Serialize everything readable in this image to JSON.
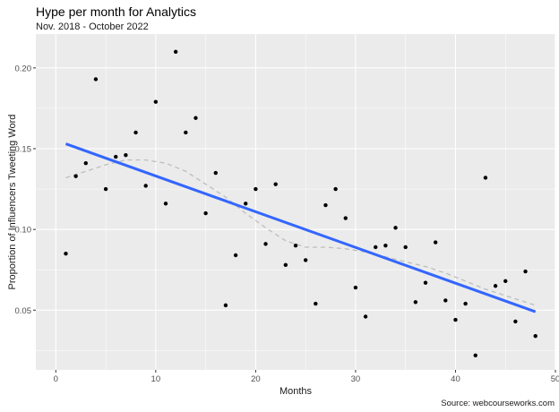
{
  "chart_data": {
    "type": "scatter",
    "title": "Hype per month for Analytics",
    "subtitle": "Nov. 2018 - October 2022",
    "xlabel": "Months",
    "ylabel": "Proportion of Influencers Tweeting Word",
    "caption": "Source: webcourseworks.com",
    "xlim": [
      -2,
      50
    ],
    "ylim": [
      0.013,
      0.221
    ],
    "x_ticks": [
      0,
      10,
      20,
      30,
      40,
      50
    ],
    "x_tick_labels": [
      "0",
      "10",
      "20",
      "30",
      "40",
      "50"
    ],
    "y_ticks": [
      0.05,
      0.1,
      0.15,
      0.2
    ],
    "y_tick_labels": [
      "0.05",
      "0.10",
      "0.15",
      "0.20"
    ],
    "grid": true,
    "points": {
      "x": [
        1,
        2,
        3,
        4,
        5,
        6,
        7,
        8,
        9,
        10,
        11,
        12,
        13,
        14,
        15,
        16,
        17,
        18,
        19,
        20,
        21,
        22,
        23,
        24,
        25,
        26,
        27,
        28,
        29,
        30,
        31,
        32,
        33,
        34,
        35,
        36,
        37,
        38,
        39,
        40,
        41,
        42,
        43,
        44,
        45,
        46,
        47,
        48
      ],
      "y": [
        0.085,
        0.133,
        0.141,
        0.193,
        0.125,
        0.145,
        0.146,
        0.16,
        0.127,
        0.179,
        0.116,
        0.21,
        0.16,
        0.169,
        0.11,
        0.135,
        0.053,
        0.084,
        0.116,
        0.125,
        0.091,
        0.128,
        0.078,
        0.09,
        0.081,
        0.054,
        0.115,
        0.125,
        0.107,
        0.064,
        0.046,
        0.089,
        0.09,
        0.101,
        0.089,
        0.055,
        0.067,
        0.092,
        0.056,
        0.044,
        0.054,
        0.022,
        0.132,
        0.065,
        0.068,
        0.043,
        0.074,
        0.034
      ],
      "color": "#000000"
    },
    "linear_fit": {
      "x": [
        1,
        48
      ],
      "y": [
        0.153,
        0.049
      ],
      "color": "#3366FF"
    },
    "smooth_fit": {
      "x": [
        1,
        3,
        5,
        7,
        9,
        11,
        13,
        15,
        17,
        19,
        21,
        23,
        25,
        27,
        29,
        31,
        33,
        35,
        37,
        39,
        41,
        43,
        45,
        47,
        48
      ],
      "y": [
        0.132,
        0.136,
        0.14,
        0.143,
        0.143,
        0.141,
        0.136,
        0.128,
        0.12,
        0.11,
        0.101,
        0.093,
        0.089,
        0.089,
        0.088,
        0.086,
        0.083,
        0.08,
        0.077,
        0.073,
        0.068,
        0.063,
        0.059,
        0.055,
        0.053
      ],
      "color": "#BDBDBD"
    },
    "panel_background": "#EBEBEB",
    "grid_color": "#FFFFFF"
  }
}
